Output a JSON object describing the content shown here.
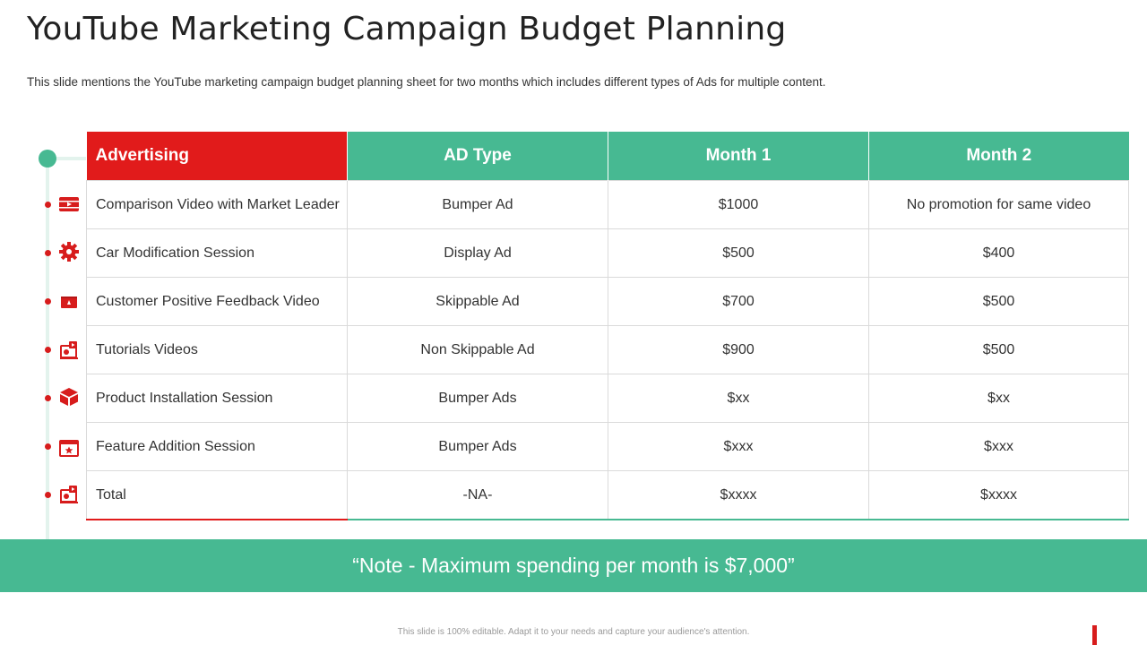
{
  "title": "YouTube Marketing Campaign Budget Planning",
  "subtitle": "This slide mentions the YouTube marketing campaign budget planning sheet for two months which includes different types of Ads for multiple content.",
  "table": {
    "headers": [
      "Advertising",
      "AD Type",
      "Month 1",
      "Month 2"
    ],
    "rows": [
      {
        "icon": "video-icon",
        "advertising": "Comparison Video with Market Leader",
        "ad_type": "Bumper Ad",
        "month1": "$1000",
        "month2": "No promotion for same video"
      },
      {
        "icon": "gear-icon",
        "advertising": "Car Modification Session",
        "ad_type": "Display Ad",
        "month1": "$500",
        "month2": "$400"
      },
      {
        "icon": "feedback-icon",
        "advertising": "Customer Positive Feedback Video",
        "ad_type": "Skippable Ad",
        "month1": "$700",
        "month2": "$500"
      },
      {
        "icon": "tutorial-icon",
        "advertising": "Tutorials  Videos",
        "ad_type": "Non Skippable Ad",
        "month1": "$900",
        "month2": "$500"
      },
      {
        "icon": "box-icon",
        "advertising": "Product Installation  Session",
        "ad_type": "Bumper Ads",
        "month1": "$xx",
        "month2": "$xx"
      },
      {
        "icon": "star-window-icon",
        "advertising": "Feature Addition Session",
        "ad_type": "Bumper Ads",
        "month1": "$xxx",
        "month2": "$xxx"
      },
      {
        "icon": "tutorial-icon",
        "advertising": "Total",
        "ad_type": "-NA-",
        "month1": "$xxxx",
        "month2": "$xxxx"
      }
    ]
  },
  "note": "“Note - Maximum  spending per month is $7,000”",
  "footer": "This slide is 100% editable. Adapt it to your needs and capture your audience's attention.",
  "colors": {
    "accent_red": "#e11b1b",
    "accent_green": "#47b992"
  }
}
